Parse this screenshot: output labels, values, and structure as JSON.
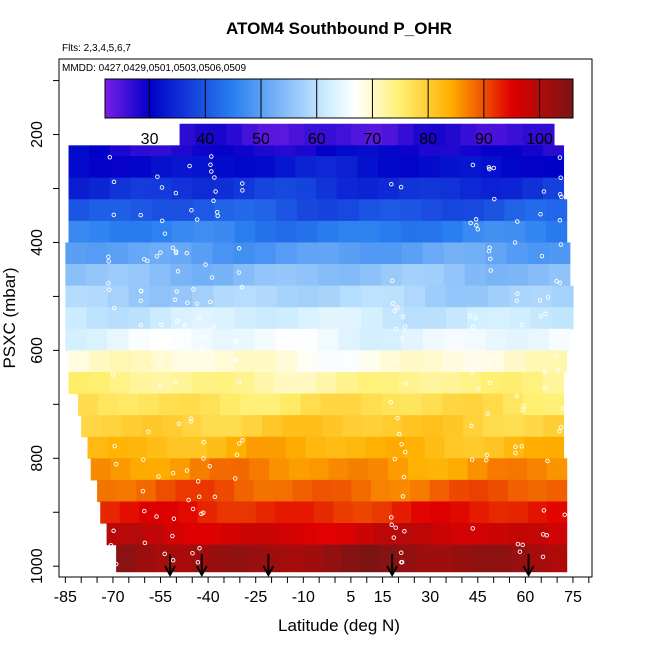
{
  "chart_data": {
    "type": "heatmap",
    "title": "ATOM4 Southbound P_OHR",
    "subtitle_flights": "Flts: 2,3,4,5,6,7",
    "subtitle_dates": "MMDD: 0427,0429,0501,0503,0506,0509",
    "xlabel": "Latitude (deg N)",
    "ylabel": "PSXC (mbar)",
    "xlim": [
      -87,
      81
    ],
    "ylim": [
      1020,
      60
    ],
    "x_ticks": [
      -85,
      -70,
      -55,
      -40,
      -25,
      -10,
      5,
      15,
      30,
      45,
      60,
      75
    ],
    "y_ticks": [
      200,
      400,
      600,
      800,
      1000
    ],
    "colorbar": {
      "range": [
        22,
        106
      ],
      "ticks": [
        30,
        40,
        50,
        60,
        70,
        80,
        90,
        100
      ],
      "colors": [
        "#7a1fe6",
        "#0000c8",
        "#2a7ff0",
        "#cfeeff",
        "#ffffff",
        "#fff070",
        "#ffb000",
        "#e00000",
        "#7a1515"
      ],
      "stops": [
        22,
        30,
        45,
        62,
        67,
        75,
        84,
        95,
        106
      ]
    },
    "bands": [
      {
        "p_top": 180,
        "p_bot": 220,
        "lat_min": -49,
        "lat_max": 69,
        "value": 26
      },
      {
        "p_top": 220,
        "p_bot": 240,
        "lat_min": -84,
        "lat_max": 72,
        "value": 29
      },
      {
        "p_top": 240,
        "p_bot": 280,
        "lat_min": -84,
        "lat_max": 72,
        "value": 32
      },
      {
        "p_top": 280,
        "p_bot": 320,
        "lat_min": -84,
        "lat_max": 72,
        "value": 36
      },
      {
        "p_top": 320,
        "p_bot": 360,
        "lat_min": -84,
        "lat_max": 73,
        "value": 40
      },
      {
        "p_top": 360,
        "p_bot": 400,
        "lat_min": -84,
        "lat_max": 73,
        "value": 45
      },
      {
        "p_top": 400,
        "p_bot": 440,
        "lat_min": -85,
        "lat_max": 74,
        "value": 50
      },
      {
        "p_top": 440,
        "p_bot": 480,
        "lat_min": -85,
        "lat_max": 74,
        "value": 55
      },
      {
        "p_top": 480,
        "p_bot": 520,
        "lat_min": -85,
        "lat_max": 75,
        "value": 58
      },
      {
        "p_top": 520,
        "p_bot": 560,
        "lat_min": -85,
        "lat_max": 75,
        "value": 62
      },
      {
        "p_top": 560,
        "p_bot": 600,
        "lat_min": -85,
        "lat_max": 74,
        "value": 65
      },
      {
        "p_top": 600,
        "p_bot": 640,
        "lat_min": -84,
        "lat_max": 73,
        "value": 69
      },
      {
        "p_top": 640,
        "p_bot": 680,
        "lat_min": -84,
        "lat_max": 72,
        "value": 73
      },
      {
        "p_top": 680,
        "p_bot": 720,
        "lat_min": -81,
        "lat_max": 72,
        "value": 77
      },
      {
        "p_top": 720,
        "p_bot": 760,
        "lat_min": -80,
        "lat_max": 72,
        "value": 80
      },
      {
        "p_top": 760,
        "p_bot": 800,
        "lat_min": -78,
        "lat_max": 72,
        "value": 83
      },
      {
        "p_top": 800,
        "p_bot": 840,
        "lat_min": -77,
        "lat_max": 73,
        "value": 86
      },
      {
        "p_top": 840,
        "p_bot": 880,
        "lat_min": -75,
        "lat_max": 73,
        "value": 89
      },
      {
        "p_top": 880,
        "p_bot": 920,
        "lat_min": -74,
        "lat_max": 73,
        "value": 93
      },
      {
        "p_top": 920,
        "p_bot": 960,
        "lat_min": -72,
        "lat_max": 73,
        "value": 97
      },
      {
        "p_top": 960,
        "p_bot": 1010,
        "lat_min": -69,
        "lat_max": 73,
        "value": 103
      }
    ],
    "arrow_latitudes": [
      -52,
      -42,
      -21,
      18,
      61
    ]
  }
}
